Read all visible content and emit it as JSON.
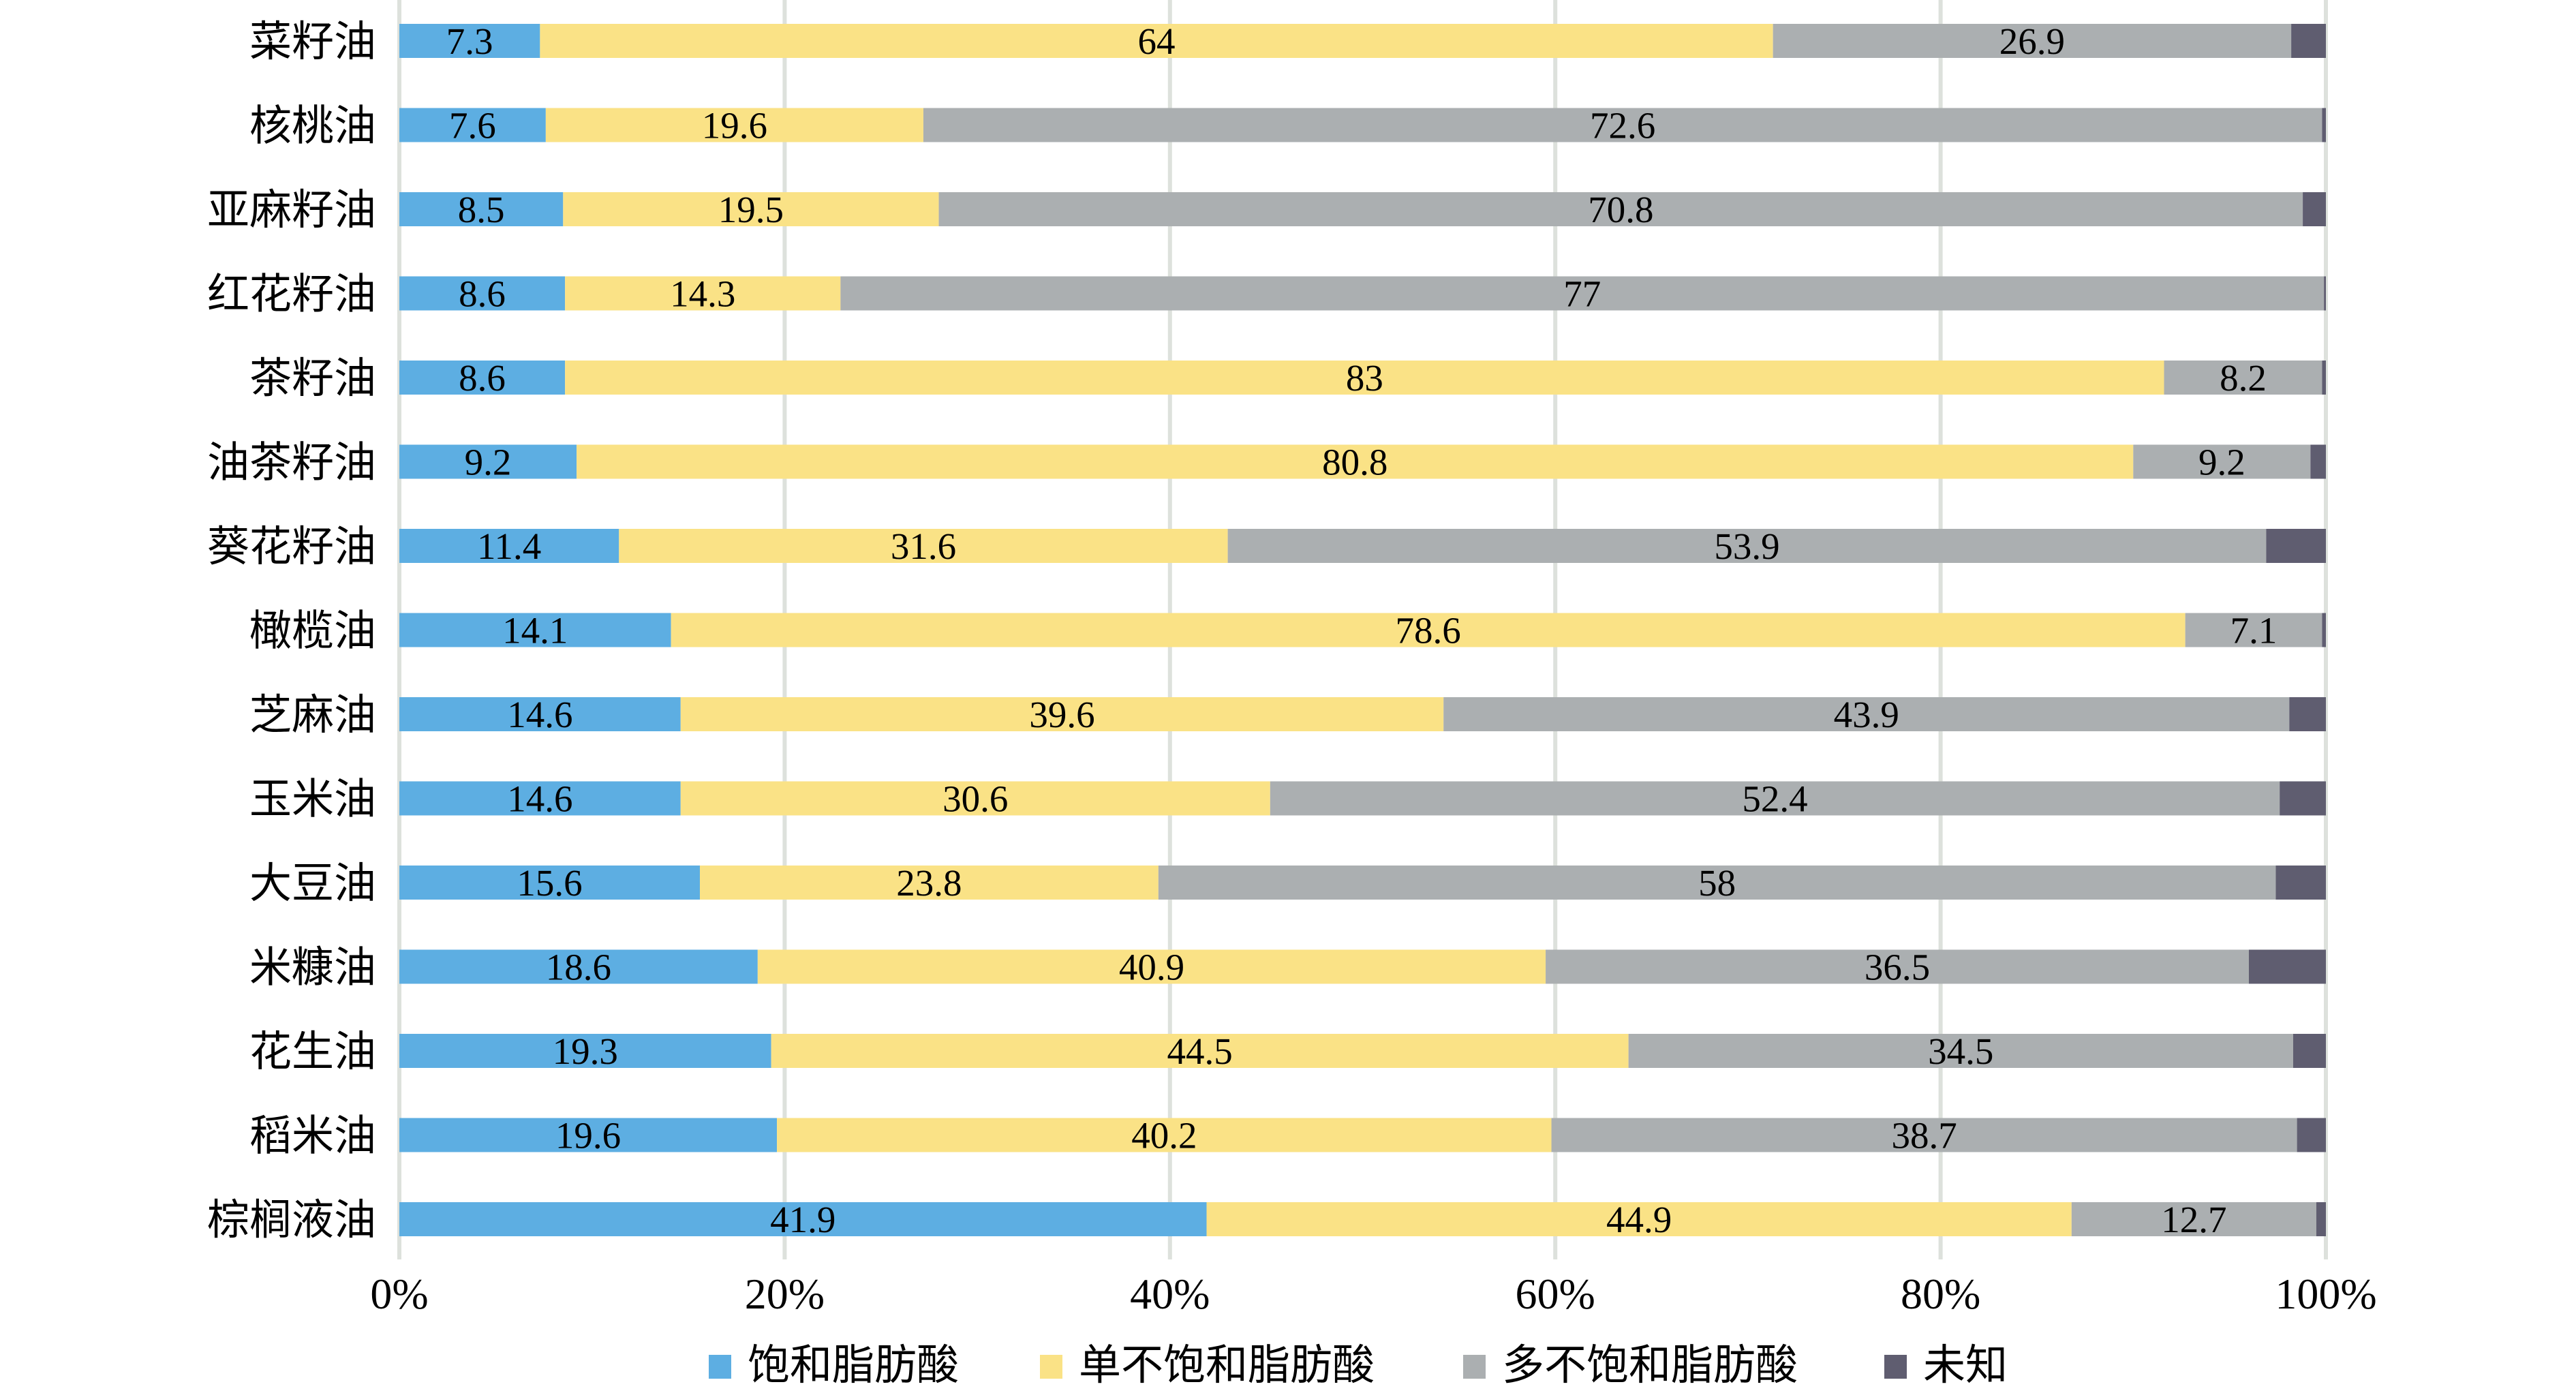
{
  "chart_data": {
    "type": "bar",
    "orientation": "horizontal",
    "stacked": "percent",
    "title": "",
    "xlabel": "",
    "ylabel": "",
    "xlim": [
      0,
      100
    ],
    "x_ticks": [
      "0%",
      "20%",
      "40%",
      "60%",
      "80%",
      "100%"
    ],
    "grid": true,
    "legend_position": "bottom",
    "categories": [
      "菜籽油",
      "核桃油",
      "亚麻籽油",
      "红花籽油",
      "茶籽油",
      "油茶籽油",
      "葵花籽油",
      "橄榄油",
      "芝麻油",
      "玉米油",
      "大豆油",
      "米糠油",
      "花生油",
      "稻米油",
      "棕榈液油"
    ],
    "series": [
      {
        "name": "饱和脂肪酸",
        "color": "#5daee2",
        "values": [
          7.3,
          7.6,
          8.5,
          8.6,
          8.6,
          9.2,
          11.4,
          14.1,
          14.6,
          14.6,
          15.6,
          18.6,
          19.3,
          19.6,
          41.9
        ],
        "labels": [
          "7.3",
          "7.6",
          "8.5",
          "8.6",
          "8.6",
          "9.2",
          "11.4",
          "14.1",
          "14.6",
          "14.6",
          "15.6",
          "18.6",
          "19.3",
          "19.6",
          "41.9"
        ]
      },
      {
        "name": "单不饱和脂肪酸",
        "color": "#fae286",
        "values": [
          64,
          19.6,
          19.5,
          14.3,
          83,
          80.8,
          31.6,
          78.6,
          39.6,
          30.6,
          23.8,
          40.9,
          44.5,
          40.2,
          44.9
        ],
        "labels": [
          "64",
          "19.6",
          "19.5",
          "14.3",
          "83",
          "80.8",
          "31.6",
          "78.6",
          "39.6",
          "30.6",
          "23.8",
          "40.9",
          "44.5",
          "40.2",
          "44.9"
        ]
      },
      {
        "name": "多不饱和脂肪酸",
        "color": "#abafb1",
        "values": [
          26.9,
          72.6,
          70.8,
          77,
          8.2,
          9.2,
          53.9,
          7.1,
          43.9,
          52.4,
          58,
          36.5,
          34.5,
          38.7,
          12.7
        ],
        "labels": [
          "26.9",
          "72.6",
          "70.8",
          "77",
          "8.2",
          "9.2",
          "53.9",
          "7.1",
          "43.9",
          "52.4",
          "58",
          "36.5",
          "34.5",
          "38.7",
          "12.7"
        ]
      },
      {
        "name": "未知",
        "color": "#5f5d70",
        "values": [
          1.8,
          0.2,
          1.2,
          0.1,
          0.2,
          0.8,
          3.1,
          0.2,
          1.9,
          2.4,
          2.6,
          4.0,
          1.7,
          1.5,
          0.5
        ]
      }
    ],
    "colors": {
      "gridline": "#dde1dc",
      "text": "#000000"
    }
  }
}
